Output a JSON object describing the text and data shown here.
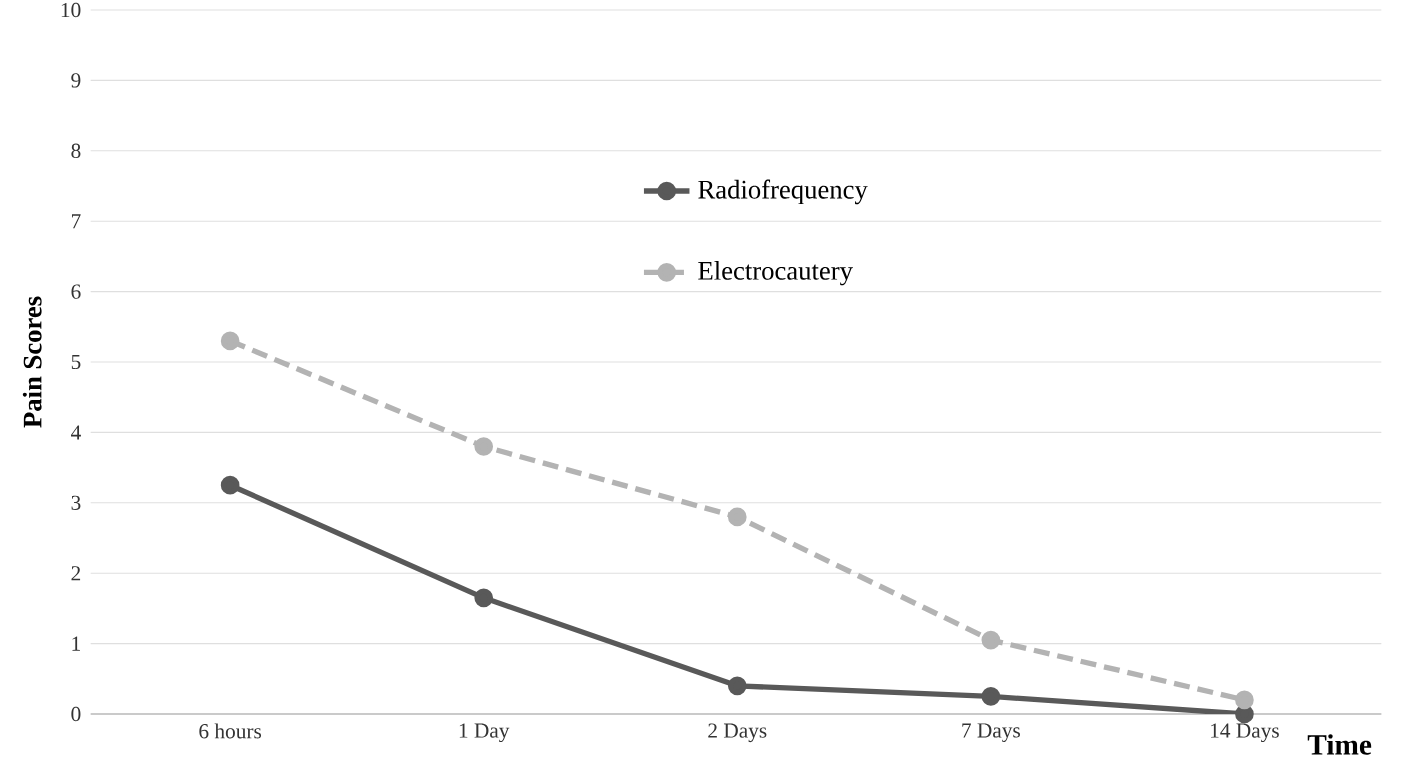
{
  "chart_data": {
    "type": "line",
    "xlabel": "Time",
    "ylabel": "Pain Scores",
    "categories": [
      "6 hours",
      "1 Day",
      "2 Days",
      "7 Days",
      "14 Days"
    ],
    "series": [
      {
        "name": "Radiofrequency",
        "color": "#595959",
        "values": [
          3.25,
          1.65,
          0.4,
          0.25,
          0
        ],
        "line_style": "solid"
      },
      {
        "name": "Electrocautery",
        "color": "#b3b3b3",
        "values": [
          5.3,
          3.8,
          2.8,
          1.05,
          0.2
        ],
        "line_style": "dashed"
      }
    ],
    "ylim": [
      0,
      10
    ],
    "yticks": [
      0,
      1,
      2,
      3,
      4,
      5,
      6,
      7,
      8,
      9,
      10
    ],
    "grid": "y",
    "legend": "top",
    "marker": "circle"
  }
}
